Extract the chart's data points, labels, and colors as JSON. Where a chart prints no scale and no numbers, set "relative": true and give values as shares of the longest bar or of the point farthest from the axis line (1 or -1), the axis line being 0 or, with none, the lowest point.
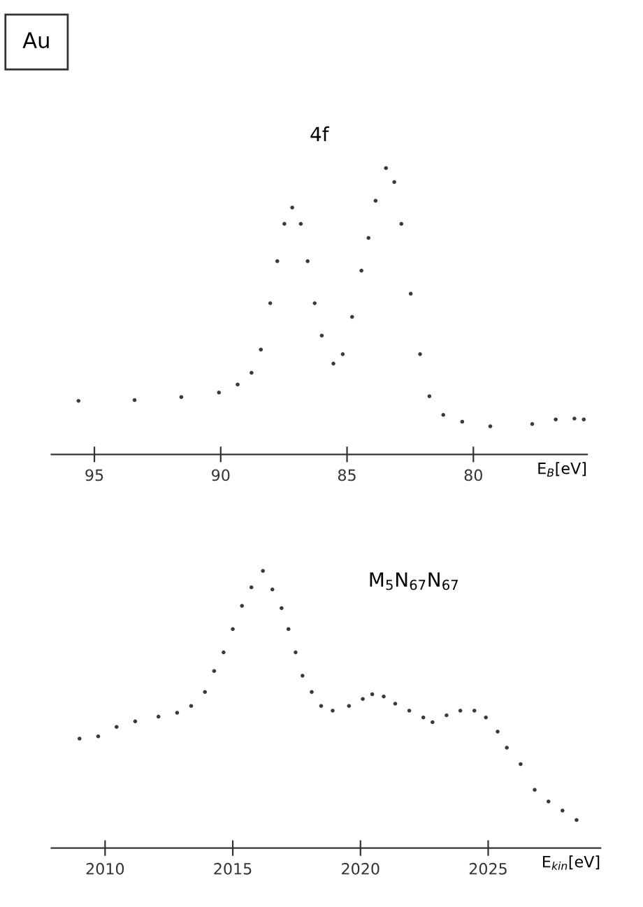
{
  "chart_data": [
    {
      "type": "scatter",
      "title": "4f",
      "xlabel": "E$_{B}$[eV]",
      "annotations": [
        "Au"
      ],
      "relative": true,
      "marker": "circle",
      "grid": false,
      "tick_labels": "x",
      "xlim": [
        96.7,
        75.5
      ],
      "xticks": [
        95,
        90,
        85,
        80
      ],
      "series": [
        {
          "color": "#3a3a3a",
          "x": [
            95.63,
            93.41,
            91.56,
            90.07,
            89.33,
            88.78,
            88.41,
            88.04,
            87.76,
            87.48,
            87.17,
            86.83,
            86.56,
            86.28,
            86.0,
            85.54,
            85.17,
            84.8,
            84.43,
            84.15,
            83.87,
            83.46,
            83.13,
            82.85,
            82.48,
            82.11,
            81.74,
            81.19,
            80.44,
            79.33,
            77.67,
            76.74,
            76.0,
            75.63
          ],
          "values": [
            0.187,
            0.19,
            0.2,
            0.216,
            0.244,
            0.285,
            0.366,
            0.528,
            0.675,
            0.805,
            0.862,
            0.805,
            0.675,
            0.528,
            0.415,
            0.317,
            0.35,
            0.48,
            0.642,
            0.756,
            0.886,
            1.0,
            0.951,
            0.805,
            0.561,
            0.35,
            0.203,
            0.138,
            0.114,
            0.098,
            0.106,
            0.122,
            0.125,
            0.122
          ]
        }
      ]
    },
    {
      "type": "scatter",
      "title": "M$_{5}$N$_{67}$N$_{67}$",
      "xlabel": "E$_{kin}$[eV]",
      "relative": true,
      "marker": "circle",
      "grid": false,
      "tick_labels": "x",
      "xlim": [
        2007.9,
        2029.4
      ],
      "xticks": [
        2010,
        2015,
        2020,
        2025
      ],
      "series": [
        {
          "color": "#3a3a3a",
          "x": [
            2009.0,
            2009.73,
            2010.45,
            2011.18,
            2012.09,
            2012.82,
            2013.37,
            2013.91,
            2014.27,
            2014.64,
            2015.0,
            2015.36,
            2015.73,
            2016.18,
            2016.55,
            2016.91,
            2017.18,
            2017.46,
            2017.73,
            2018.09,
            2018.46,
            2018.91,
            2019.55,
            2020.09,
            2020.46,
            2020.91,
            2021.36,
            2021.91,
            2022.46,
            2022.82,
            2023.37,
            2023.91,
            2024.46,
            2024.91,
            2025.37,
            2025.73,
            2026.27,
            2026.82,
            2027.36,
            2027.91,
            2028.46
          ],
          "values": [
            0.395,
            0.403,
            0.437,
            0.457,
            0.474,
            0.488,
            0.513,
            0.563,
            0.639,
            0.706,
            0.79,
            0.874,
            0.941,
            1.0,
            0.933,
            0.866,
            0.79,
            0.706,
            0.622,
            0.563,
            0.513,
            0.496,
            0.513,
            0.538,
            0.555,
            0.547,
            0.521,
            0.496,
            0.471,
            0.454,
            0.479,
            0.496,
            0.496,
            0.471,
            0.42,
            0.362,
            0.303,
            0.21,
            0.168,
            0.135,
            0.101
          ]
        }
      ]
    }
  ]
}
